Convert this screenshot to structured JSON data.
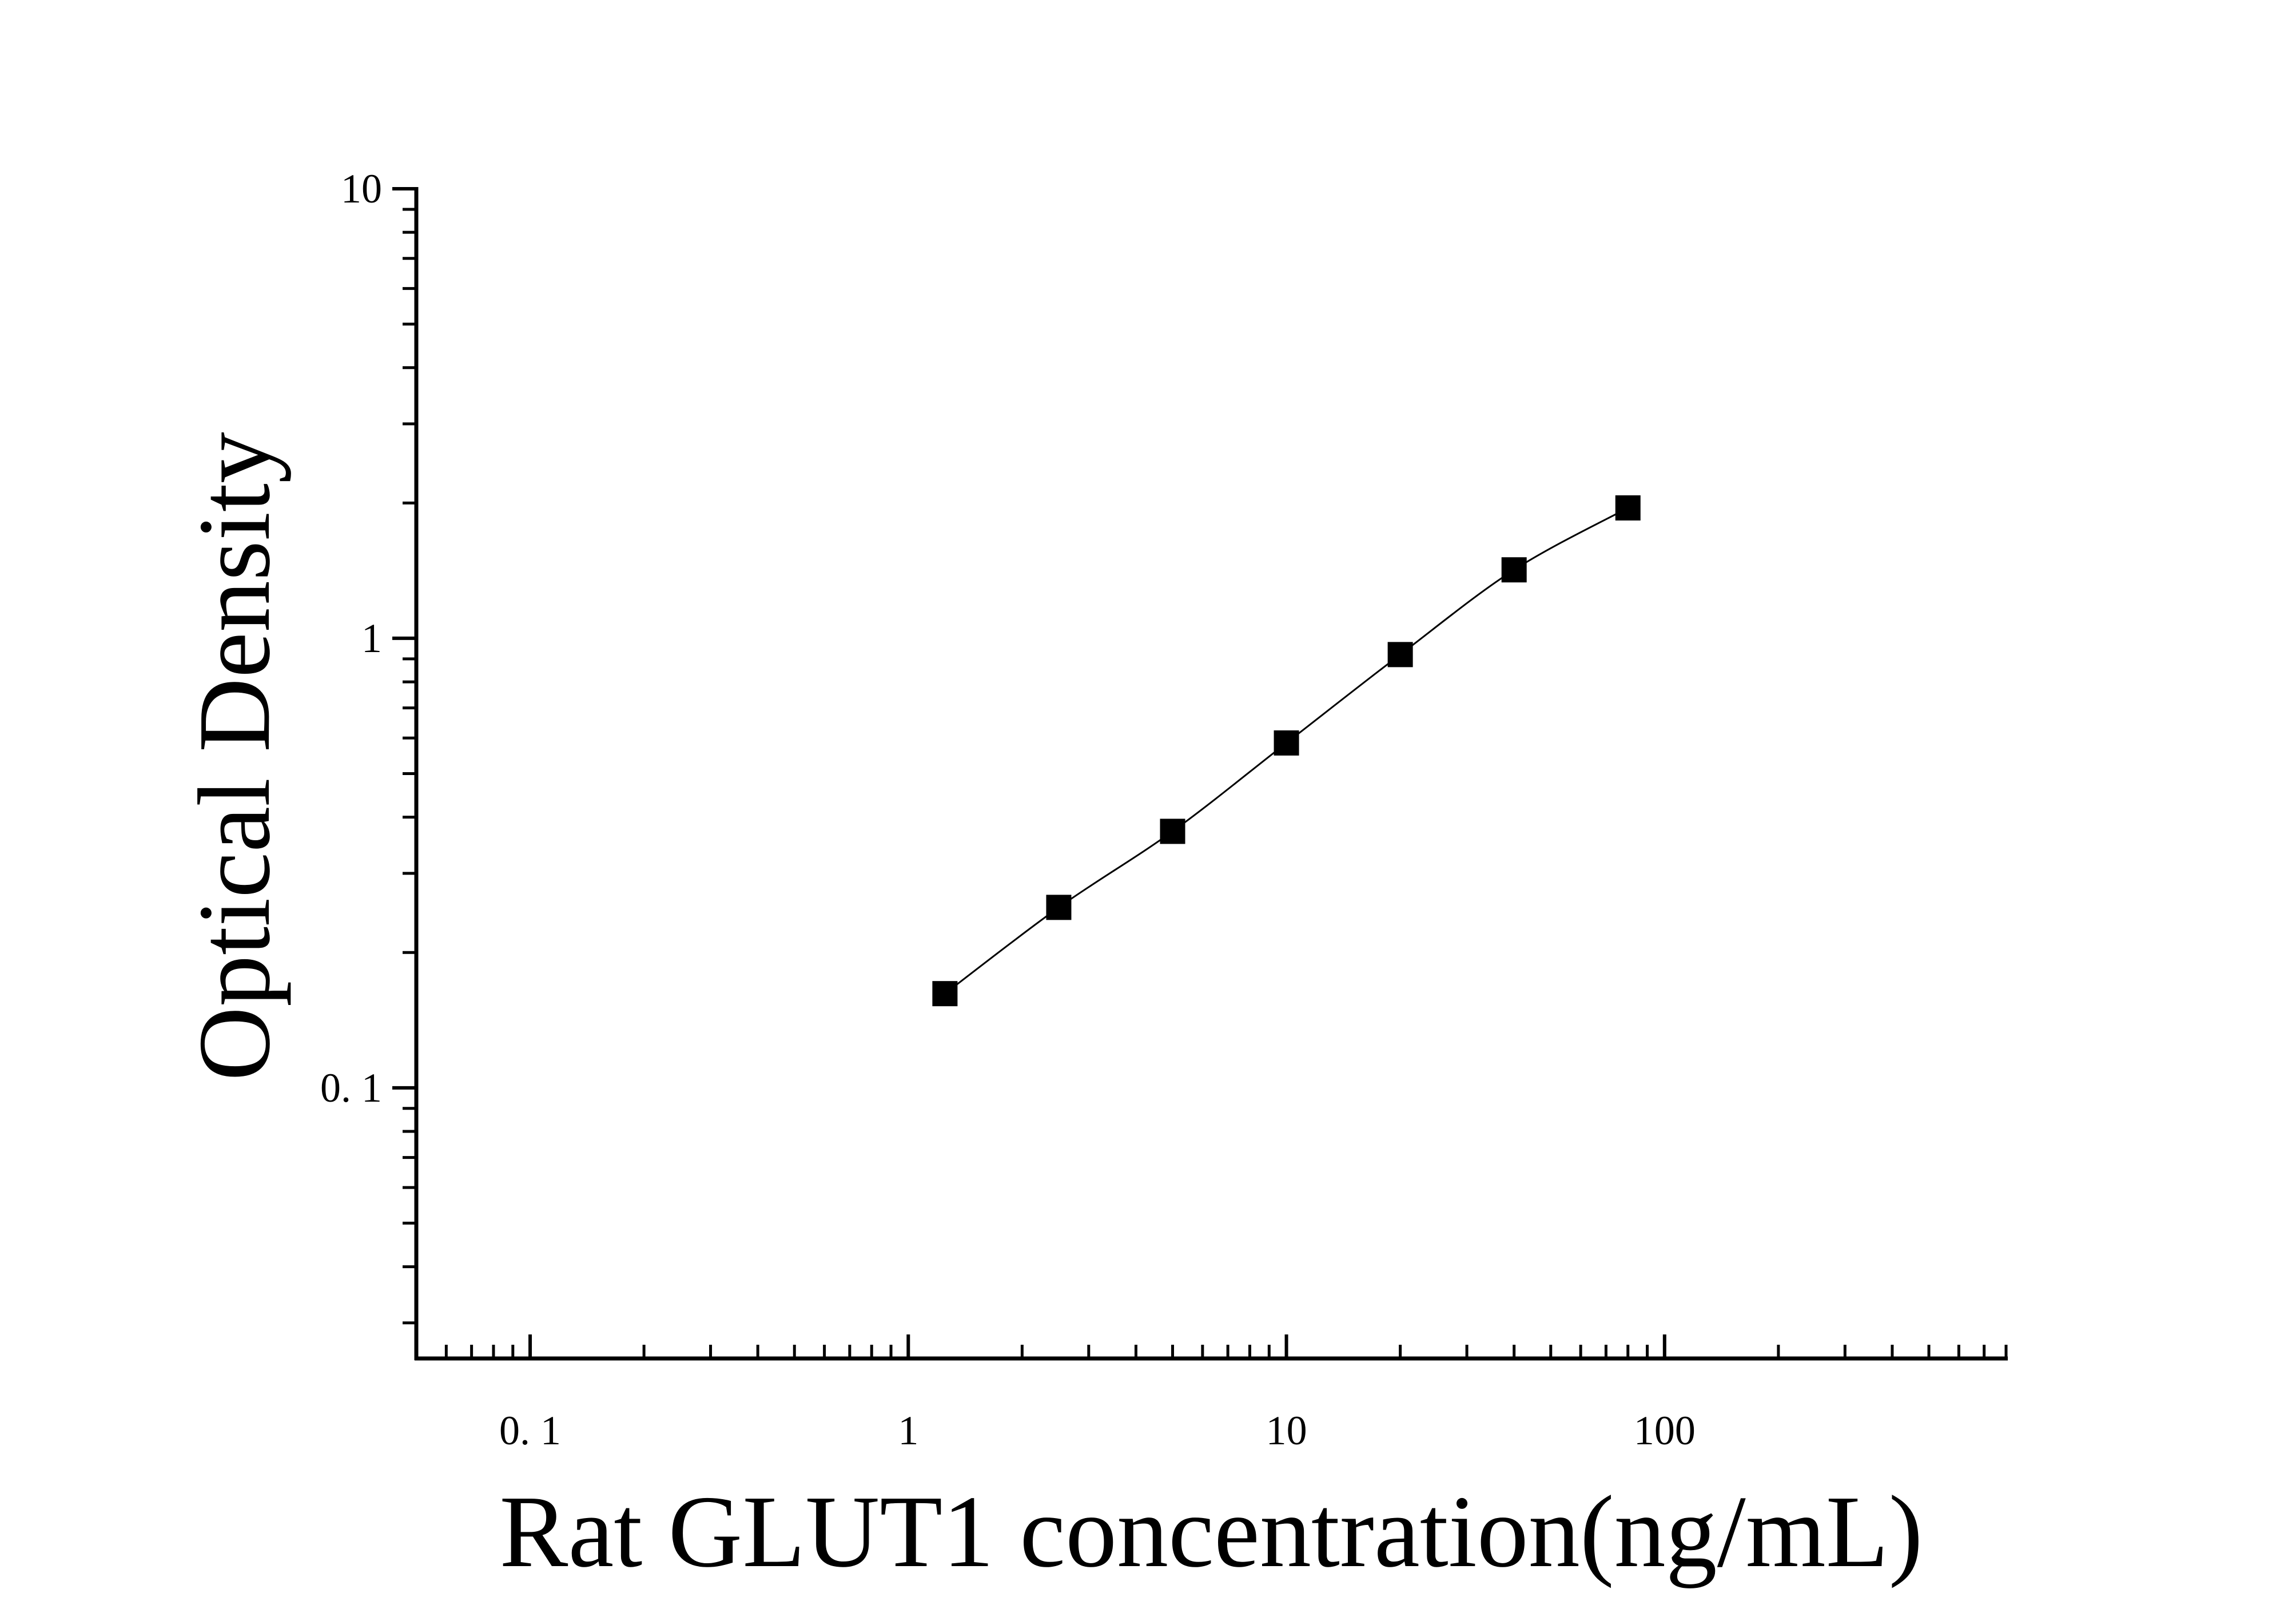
{
  "chart_data": {
    "type": "scatter",
    "x_scale": "log",
    "y_scale": "log",
    "xlim": [
      0.05,
      800
    ],
    "ylim": [
      0.025,
      10
    ],
    "xlabel": "Rat GLUT1 concentration(ng/mL)",
    "ylabel": "Optical Density",
    "x_ticks": [
      {
        "value": 0.1,
        "label": "0. 1"
      },
      {
        "value": 1,
        "label": "1"
      },
      {
        "value": 10,
        "label": "10"
      },
      {
        "value": 100,
        "label": "100"
      }
    ],
    "y_ticks": [
      {
        "value": 0.1,
        "label": "0. 1"
      },
      {
        "value": 1,
        "label": "1"
      },
      {
        "value": 10,
        "label": "10"
      }
    ],
    "grid": false,
    "series": [
      {
        "x": [
          1.25,
          2.5,
          5,
          10,
          20,
          40,
          80
        ],
        "y": [
          0.162,
          0.252,
          0.372,
          0.585,
          0.92,
          1.42,
          1.95
        ],
        "marker": "square",
        "color": "#000000",
        "fit_line": true
      }
    ]
  }
}
